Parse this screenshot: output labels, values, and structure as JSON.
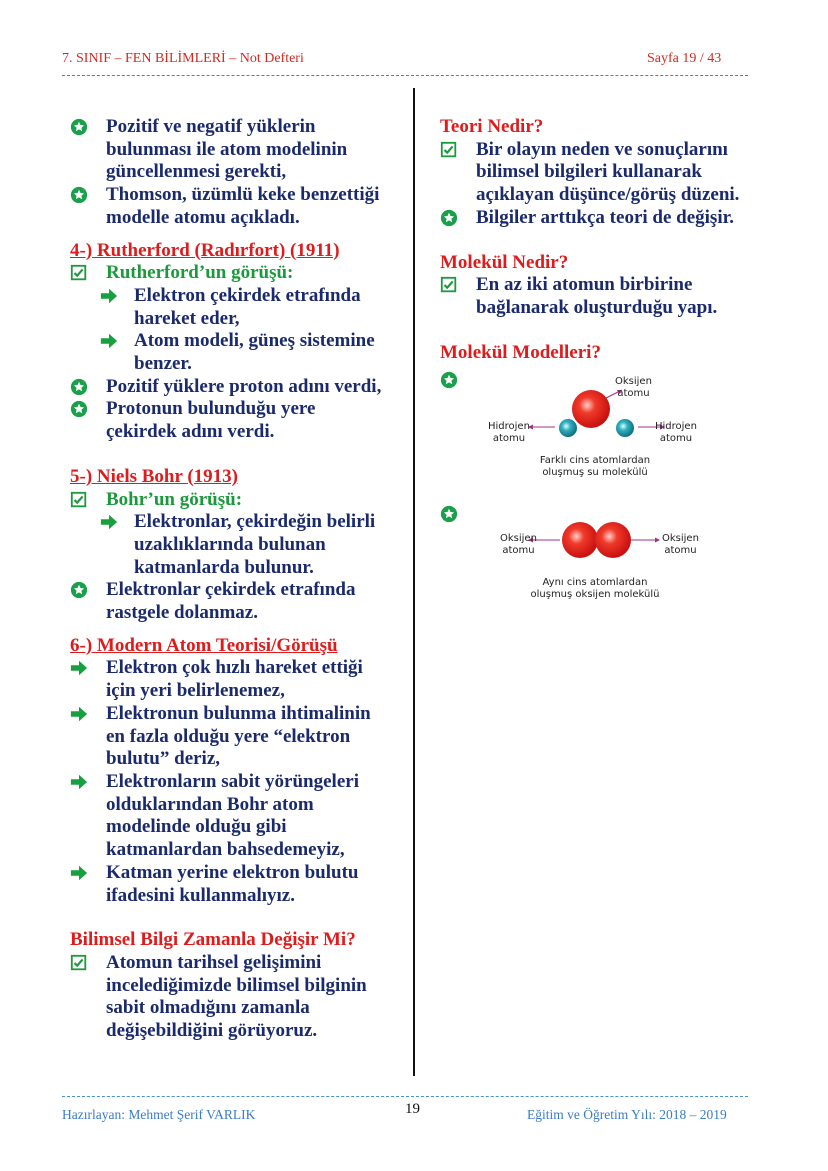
{
  "header": {
    "left": "7. SINIF – FEN BİLİMLERİ –  Not Defteri",
    "right": "Sayfa 19 / 43"
  },
  "left": {
    "b1": "Pozitif ve negatif yüklerin\nbulunması ile atom modelinin\ngüncellenmesi gerekti,",
    "b2": "Thomson, üzümlü keke benzettiği\nmodelle atomu açıkladı.",
    "h4": "4-) Rutherford (Radırfort) (1911)",
    "r_label": "Rutherford’un görüşü:",
    "r_a1": "Elektron çekirdek etrafında\nhareket eder,",
    "r_a2": "Atom modeli, güneş sistemine\nbenzer.",
    "r_b1": "Pozitif yüklere proton adını verdi,",
    "r_b2": "Protonun bulunduğu yere\nçekirdek adını verdi.",
    "h5": "5-) Niels Bohr (1913)",
    "bohr_label": "Bohr’un görüşü:",
    "bohr_a1": "Elektronlar, çekirdeğin belirli\nuzaklıklarında bulunan\nkatmanlarda bulunur.",
    "bohr_b1": "Elektronlar çekirdek etrafında\nrastgele dolanmaz.",
    "h6": "6-) Modern Atom Teorisi/Görüşü",
    "m1": "Elektron çok hızlı hareket ettiği\niçin yeri belirlenemez,",
    "m2": "Elektronun bulunma ihtimalinin\nen fazla olduğu yere “elektron\nbulutu” deriz,",
    "m3": "Elektronların sabit yörüngeleri\nolduklarından Bohr atom\nmodelinde olduğu gibi\nkatmanlardan bahsedemeyiz,",
    "m4": "Katman yerine elektron bulutu\nifadesini kullanmalıyız.",
    "h7": "Bilimsel Bilgi Zamanla Değişir Mi?",
    "z1": "Atomun tarihsel gelişimini\nincelediğimizde bilimsel bilginin\nsabit olmadığını zamanla\ndeğişebildiğini görüyoruz."
  },
  "right": {
    "h1": "Teori Nedir?",
    "t1": "Bir olayın neden ve sonuçlarını\nbilimsel bilgileri kullanarak\naçıklayan düşünce/görüş düzeni.",
    "t2": "Bilgiler arttıkça teori de değişir.",
    "h2": "Molekül Nedir?",
    "k1": "En az iki atomun birbirine\nbağlanarak oluşturduğu yapı.",
    "h3": "Molekül Modelleri?",
    "water": {
      "oxygen": "Oksijen\natomu",
      "h_left": "Hidrojen\natomu",
      "h_right": "Hidrojen\natomu",
      "caption": "Farklı cins atomlardan\noluşmuş su molekülü"
    },
    "o2": {
      "left": "Oksijen\natomu",
      "right": "Oksijen\natomu",
      "caption": "Aynı cins atomlardan\noluşmuş oksijen molekülü"
    }
  },
  "footer": {
    "left": "Hazırlayan: Mehmet Şerif VARLIK",
    "center": "19",
    "right": "Eğitim ve Öğretim Yılı: 2018 – 2019"
  },
  "colors": {
    "text": "#1a2a6c",
    "heading": "#e01b1b",
    "green": "#1a9a3a",
    "star": "#1aa04a",
    "arrow": "#18a040",
    "oxygen": "#e82a1e",
    "hydrogen": "#1a9aa8"
  }
}
